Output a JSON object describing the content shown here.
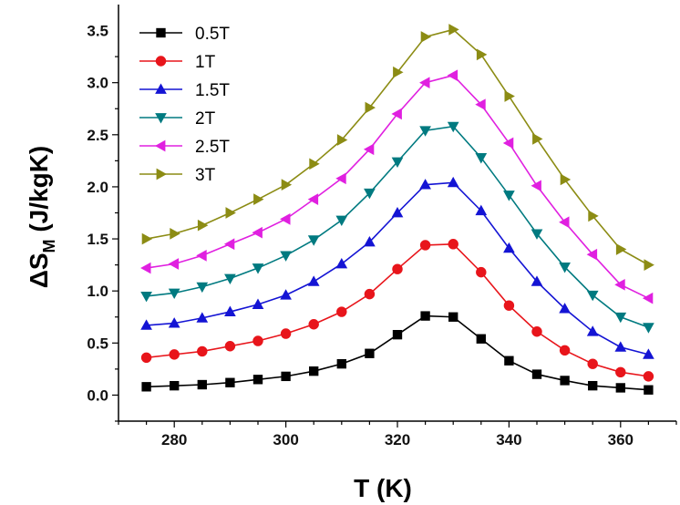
{
  "chart_data": {
    "type": "line",
    "xlabel": "T (K)",
    "ylabel": {
      "main": "ΔS",
      "subscript": "M",
      "units": " (J/kgK)"
    },
    "xlim": [
      270,
      370
    ],
    "ylim": [
      -0.25,
      3.75
    ],
    "xticks": [
      280,
      300,
      320,
      340,
      360
    ],
    "yticks": [
      0.0,
      0.5,
      1.0,
      1.5,
      2.0,
      2.5,
      3.0,
      3.5
    ],
    "ytick_labels": [
      "0.0",
      "0.5",
      "1.0",
      "1.5",
      "2.0",
      "2.5",
      "3.0",
      "3.5"
    ],
    "grid": false,
    "legend_position": "top-left",
    "x": [
      275,
      280,
      285,
      290,
      295,
      300,
      305,
      310,
      315,
      320,
      325,
      330,
      335,
      340,
      345,
      350,
      355,
      360,
      365
    ],
    "series": [
      {
        "name": "0.5T",
        "color": "#000000",
        "marker": "square",
        "values": [
          0.08,
          0.09,
          0.1,
          0.12,
          0.15,
          0.18,
          0.23,
          0.3,
          0.4,
          0.58,
          0.76,
          0.75,
          0.54,
          0.33,
          0.2,
          0.14,
          0.09,
          0.07,
          0.05
        ]
      },
      {
        "name": "1T",
        "color": "#e8151b",
        "marker": "circle",
        "values": [
          0.36,
          0.39,
          0.42,
          0.47,
          0.52,
          0.59,
          0.68,
          0.8,
          0.97,
          1.21,
          1.44,
          1.45,
          1.18,
          0.86,
          0.61,
          0.43,
          0.3,
          0.22,
          0.18
        ]
      },
      {
        "name": "1.5T",
        "color": "#1414d4",
        "marker": "triangle-up",
        "values": [
          0.67,
          0.69,
          0.74,
          0.8,
          0.87,
          0.96,
          1.09,
          1.26,
          1.47,
          1.75,
          2.02,
          2.04,
          1.77,
          1.41,
          1.09,
          0.83,
          0.61,
          0.46,
          0.39
        ]
      },
      {
        "name": "2T",
        "color": "#007a80",
        "marker": "triangle-down",
        "values": [
          0.95,
          0.98,
          1.04,
          1.12,
          1.22,
          1.34,
          1.49,
          1.68,
          1.94,
          2.24,
          2.54,
          2.58,
          2.28,
          1.92,
          1.55,
          1.23,
          0.96,
          0.75,
          0.65
        ]
      },
      {
        "name": "2.5T",
        "color": "#e020e0",
        "marker": "triangle-left",
        "values": [
          1.22,
          1.26,
          1.34,
          1.45,
          1.56,
          1.69,
          1.88,
          2.08,
          2.36,
          2.7,
          3.0,
          3.07,
          2.79,
          2.42,
          2.01,
          1.66,
          1.35,
          1.06,
          0.93
        ]
      },
      {
        "name": "3T",
        "color": "#8c8c14",
        "marker": "triangle-right",
        "values": [
          1.5,
          1.55,
          1.63,
          1.75,
          1.88,
          2.02,
          2.22,
          2.45,
          2.76,
          3.1,
          3.44,
          3.51,
          3.27,
          2.87,
          2.46,
          2.07,
          1.72,
          1.4,
          1.25
        ]
      }
    ]
  }
}
